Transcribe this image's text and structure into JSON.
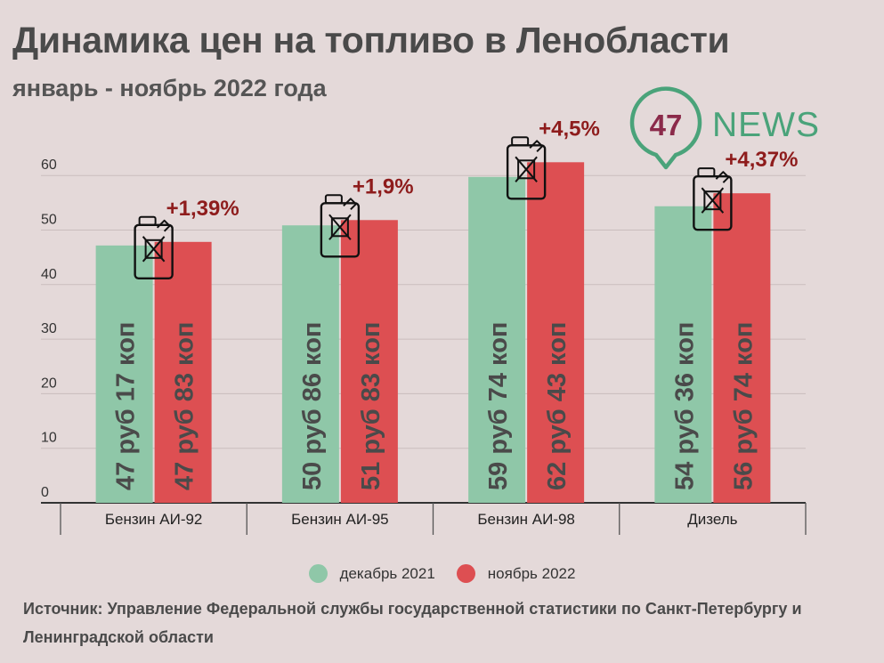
{
  "title": "Динамика цен на топливо в Ленобласти",
  "subtitle": "январь - ноябрь 2022 года",
  "logo": {
    "number": "47",
    "word": "NEWS",
    "number_color": "#8b2a4a",
    "ring_color": "#4aa37a",
    "word_color": "#4aa37a"
  },
  "chart_data": {
    "type": "bar",
    "categories": [
      "Бензин АИ-92",
      "Бензин АИ-95",
      "Бензин АИ-98",
      "Дизель"
    ],
    "series": [
      {
        "name": "декабрь 2021",
        "color": "#8fc7a8",
        "values": [
          47.17,
          50.86,
          59.74,
          54.36
        ],
        "labels": [
          "47 руб 17 коп",
          "50 руб 86 коп",
          "59 руб 74 коп",
          "54 руб 36 коп"
        ]
      },
      {
        "name": "ноябрь 2022",
        "color": "#dd4f52",
        "values": [
          47.83,
          51.83,
          62.43,
          56.74
        ],
        "labels": [
          "47 руб 83 коп",
          "51 руб 83 коп",
          "62 руб 43 коп",
          "56 руб 74 коп"
        ]
      }
    ],
    "annotations": [
      "+1,39%",
      "+1,9%",
      "+4,5%",
      "+4,37%"
    ],
    "annotation_color": "#8e1c1c",
    "icon": "fuel-canister-icon",
    "yticks": [
      0,
      10,
      20,
      30,
      40,
      50,
      60
    ],
    "ylim": [
      0,
      62
    ],
    "grid": true,
    "legend_position": "bottom"
  },
  "source": "Источник: Управление Федеральной службы государственной статистики по Санкт-Петербургу и Ленинградской области"
}
